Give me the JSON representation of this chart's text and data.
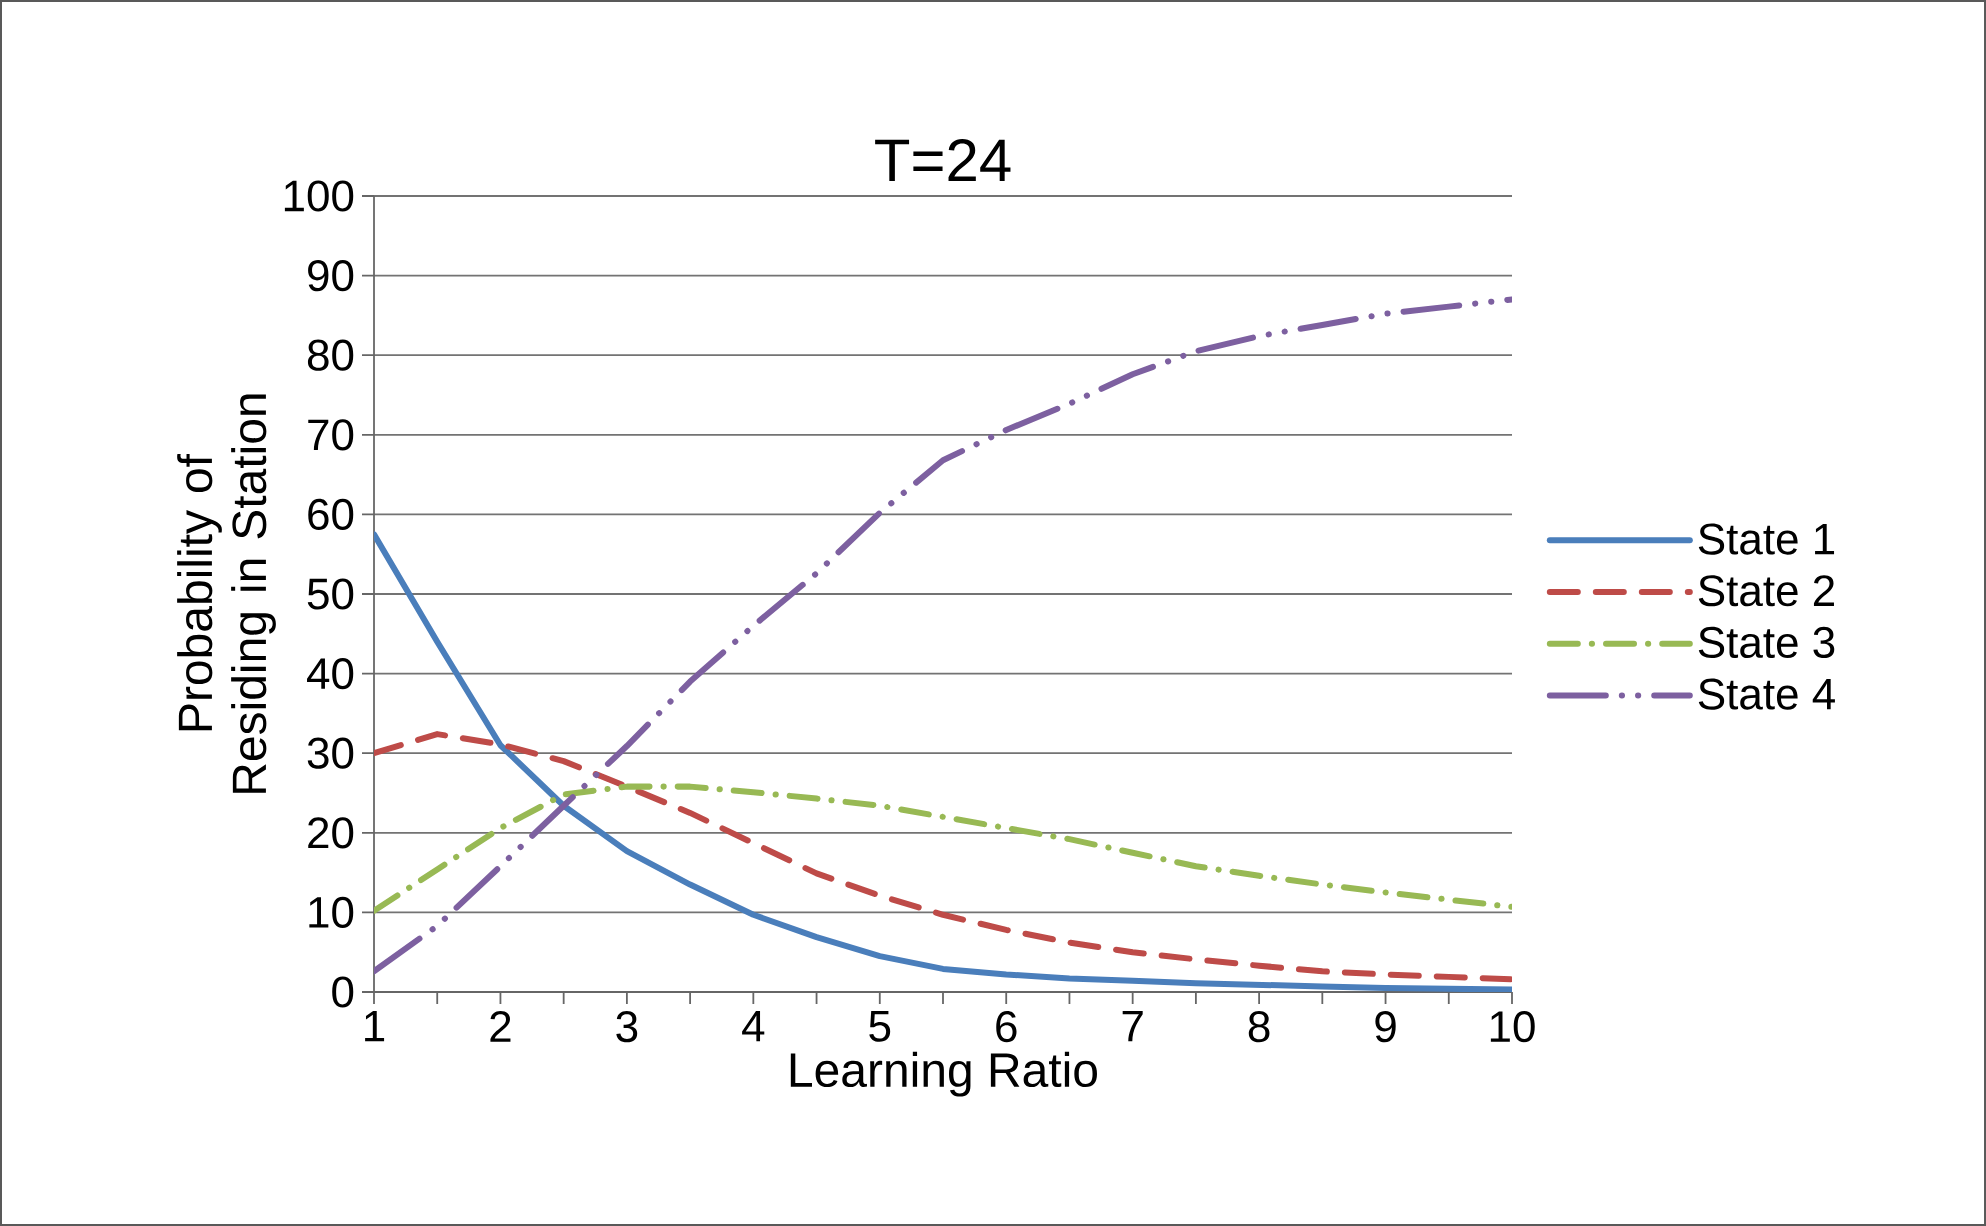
{
  "chart_data": {
    "type": "line",
    "title": "T=24",
    "xlabel": "Learning Ratio",
    "ylabel": "Probability of Residing in Station",
    "x": [
      1,
      1.5,
      2,
      2.5,
      3,
      3.5,
      4,
      4.5,
      5,
      5.5,
      6,
      6.5,
      7,
      7.5,
      8,
      8.5,
      9,
      9.5,
      10
    ],
    "xlim": [
      1,
      10
    ],
    "xticks": [
      1,
      2,
      3,
      4,
      5,
      6,
      7,
      8,
      9,
      10
    ],
    "ylim": [
      0,
      100
    ],
    "yticks": [
      0,
      10,
      20,
      30,
      40,
      50,
      60,
      70,
      80,
      90,
      100
    ],
    "grid": "y",
    "legend": "right",
    "marker": "none",
    "series": [
      {
        "name": "State 1",
        "color": "#4a7ebb",
        "line_style": "solid",
        "values": [
          57.5,
          44,
          31,
          23.4,
          17.7,
          13.5,
          9.7,
          6.9,
          4.5,
          2.9,
          2.2,
          1.7,
          1.4,
          1.1,
          0.9,
          0.7,
          0.5,
          0.4,
          0.3
        ]
      },
      {
        "name": "State 2",
        "color": "#be4b48",
        "line_style": "dashed",
        "values": [
          30,
          32.4,
          31.1,
          29,
          25.8,
          22.5,
          18.7,
          14.9,
          12.1,
          9.7,
          7.8,
          6.2,
          5,
          4.1,
          3.3,
          2.6,
          2.2,
          1.9,
          1.6
        ]
      },
      {
        "name": "State 3",
        "color": "#98b954",
        "line_style": "dashdot",
        "values": [
          10.2,
          15.4,
          20.6,
          24.8,
          25.8,
          25.8,
          25.1,
          24.3,
          23.4,
          22,
          20.6,
          19.2,
          17.5,
          15.8,
          14.6,
          13.5,
          12.5,
          11.6,
          10.7
        ]
      },
      {
        "name": "State 4",
        "color": "#7d60a0",
        "line_style": "dashdotdot",
        "values": [
          2.6,
          8.3,
          15.8,
          23.4,
          30.9,
          39,
          46,
          52.6,
          60.2,
          66.8,
          70.6,
          73.9,
          77.6,
          80.5,
          82.4,
          83.8,
          85.2,
          86.1,
          87
        ]
      }
    ]
  }
}
